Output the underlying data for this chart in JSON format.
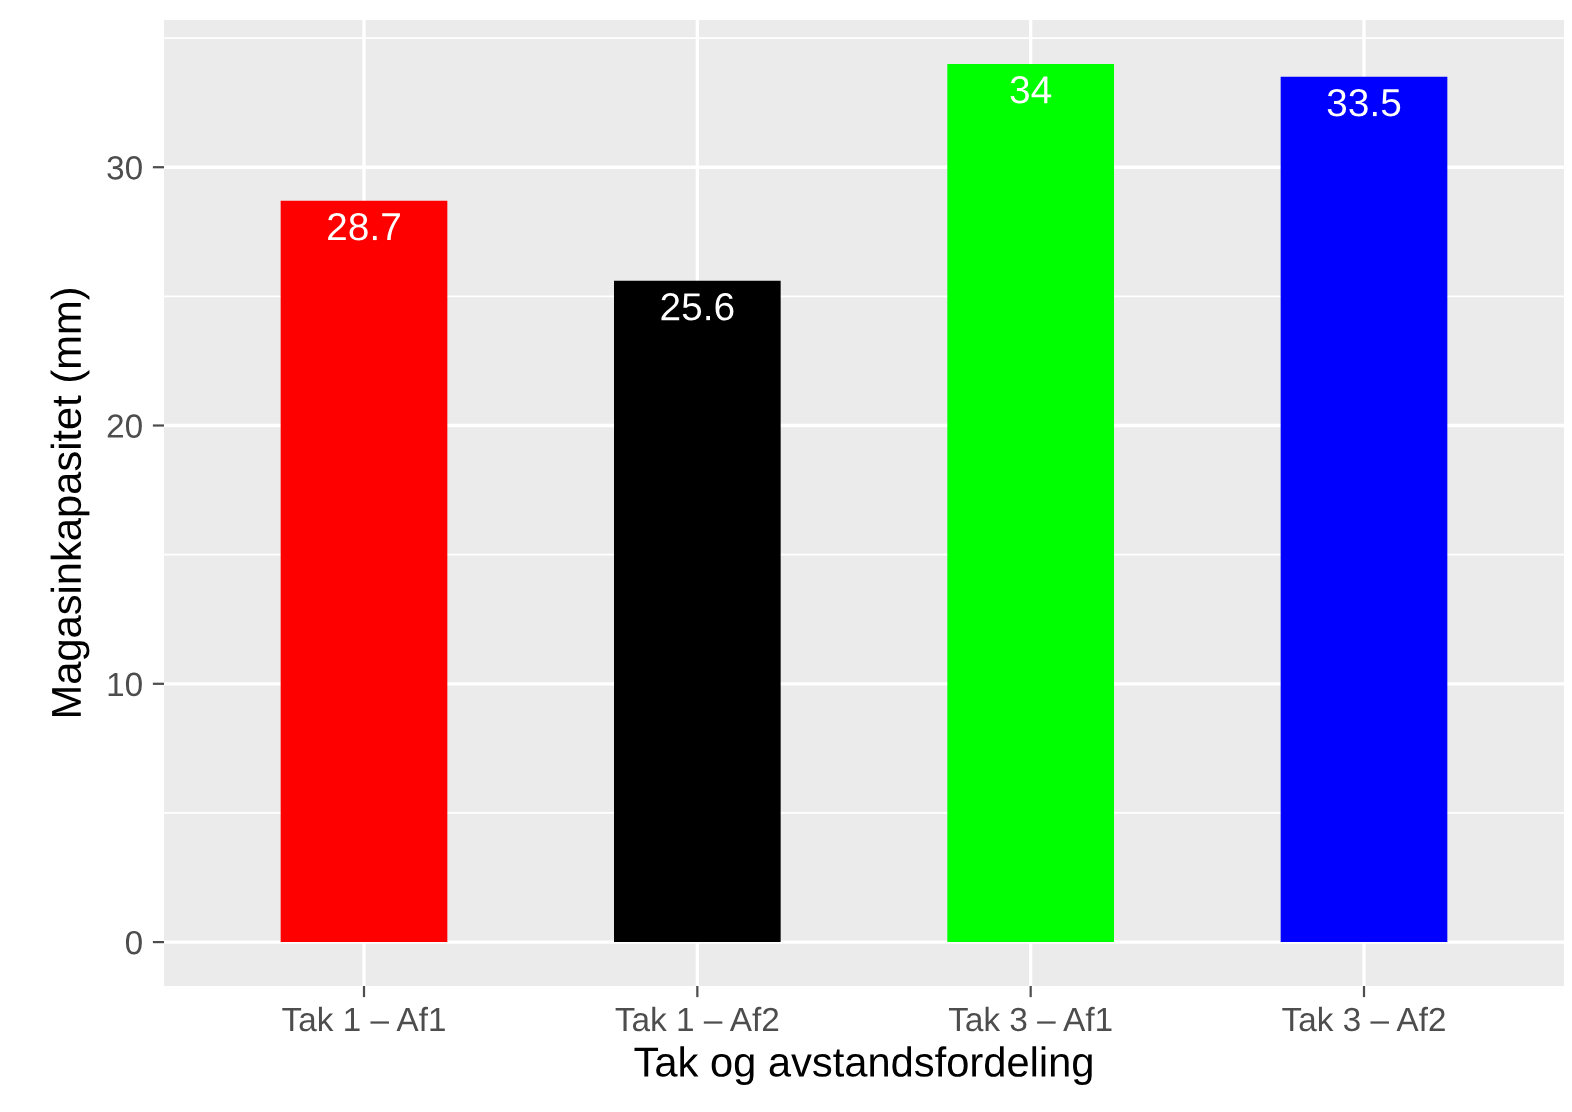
{
  "chart_data": {
    "type": "bar",
    "xlabel": "Tak og avstandsfordeling",
    "ylabel": "Magasinkapasitet (mm)",
    "categories": [
      "Tak 1 – Af1",
      "Tak 1 – Af2",
      "Tak 3 – Af1",
      "Tak 3 – Af2"
    ],
    "values": [
      28.7,
      25.6,
      34,
      33.5
    ],
    "colors": [
      "#ff0000",
      "#000000",
      "#00ff00",
      "#0000ff"
    ],
    "ylim": [
      -1.7,
      35.7
    ],
    "yticks": [
      0,
      10,
      20,
      30
    ],
    "grid": true,
    "data_labels": true
  }
}
